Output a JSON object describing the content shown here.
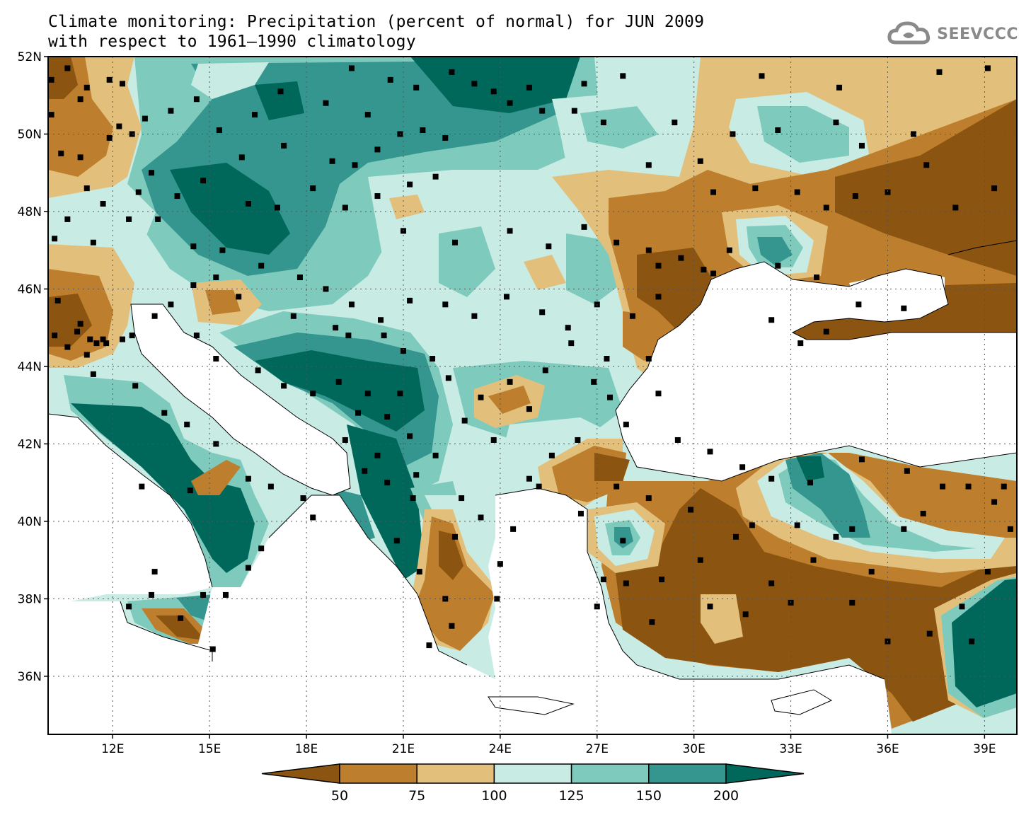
{
  "title": {
    "line1": "Climate monitoring: Precipitation (percent of normal) for JUN 2009",
    "line2": "with respect to 1961–1990 climatology"
  },
  "logo": {
    "text": "SEEVCCC",
    "icon": "cloud-icon"
  },
  "map": {
    "lon_range": [
      10,
      40
    ],
    "lat_range": [
      34.5,
      52
    ],
    "lat_ticks": [
      {
        "value": 52,
        "label": "52N"
      },
      {
        "value": 50,
        "label": "50N"
      },
      {
        "value": 48,
        "label": "48N"
      },
      {
        "value": 46,
        "label": "46N"
      },
      {
        "value": 44,
        "label": "44N"
      },
      {
        "value": 42,
        "label": "42N"
      },
      {
        "value": 40,
        "label": "40N"
      },
      {
        "value": 38,
        "label": "38N"
      },
      {
        "value": 36,
        "label": "36N"
      }
    ],
    "lon_ticks": [
      {
        "value": 12,
        "label": "12E"
      },
      {
        "value": 15,
        "label": "15E"
      },
      {
        "value": 18,
        "label": "18E"
      },
      {
        "value": 21,
        "label": "21E"
      },
      {
        "value": 24,
        "label": "24E"
      },
      {
        "value": 27,
        "label": "27E"
      },
      {
        "value": 30,
        "label": "30E"
      },
      {
        "value": 33,
        "label": "33E"
      },
      {
        "value": 36,
        "label": "36E"
      },
      {
        "value": 39,
        "label": "39E"
      }
    ],
    "grid": "dotted"
  },
  "legend": {
    "labels": [
      "50",
      "75",
      "100",
      "125",
      "150",
      "200"
    ],
    "colors": [
      "#8b5410",
      "#bd7f2e",
      "#e2c07c",
      "#c8ebe4",
      "#7ecbbe",
      "#34968e",
      "#00675b"
    ]
  },
  "colors": {
    "c1": "#8b5410",
    "c2": "#bd7f2e",
    "c3": "#e2c07c",
    "c4": "#c8ebe4",
    "c5": "#7ecbbe",
    "c6": "#34968e",
    "c7": "#00675b",
    "sea": "#ffffff"
  },
  "stations": [
    [
      10.1,
      51.4
    ],
    [
      10.6,
      51.7
    ],
    [
      11.2,
      51.2
    ],
    [
      11.9,
      51.4
    ],
    [
      12.3,
      51.3
    ],
    [
      10.1,
      50.5
    ],
    [
      11.0,
      50.9
    ],
    [
      12.2,
      50.2
    ],
    [
      13.0,
      50.4
    ],
    [
      10.4,
      49.5
    ],
    [
      11.0,
      49.4
    ],
    [
      11.9,
      49.9
    ],
    [
      12.6,
      50.0
    ],
    [
      13.2,
      49.0
    ],
    [
      13.8,
      50.6
    ],
    [
      14.6,
      50.9
    ],
    [
      15.3,
      50.1
    ],
    [
      16.4,
      50.5
    ],
    [
      17.3,
      49.7
    ],
    [
      16.0,
      49.4
    ],
    [
      14.8,
      48.8
    ],
    [
      14.0,
      48.4
    ],
    [
      12.8,
      48.5
    ],
    [
      11.7,
      48.2
    ],
    [
      11.2,
      48.6
    ],
    [
      10.6,
      47.8
    ],
    [
      10.2,
      47.3
    ],
    [
      11.4,
      47.2
    ],
    [
      12.5,
      47.8
    ],
    [
      13.4,
      47.8
    ],
    [
      14.5,
      47.1
    ],
    [
      15.4,
      47.0
    ],
    [
      16.2,
      48.2
    ],
    [
      17.1,
      48.1
    ],
    [
      18.2,
      48.6
    ],
    [
      18.8,
      49.3
    ],
    [
      19.5,
      49.2
    ],
    [
      20.2,
      49.6
    ],
    [
      20.9,
      50.0
    ],
    [
      21.6,
      50.1
    ],
    [
      22.3,
      49.9
    ],
    [
      19.9,
      50.5
    ],
    [
      18.6,
      50.8
    ],
    [
      17.2,
      51.1
    ],
    [
      19.4,
      51.7
    ],
    [
      20.6,
      51.4
    ],
    [
      21.4,
      51.2
    ],
    [
      22.5,
      51.6
    ],
    [
      23.2,
      51.3
    ],
    [
      23.8,
      51.1
    ],
    [
      24.3,
      50.8
    ],
    [
      22.0,
      48.9
    ],
    [
      21.2,
      48.7
    ],
    [
      20.2,
      48.4
    ],
    [
      19.2,
      48.1
    ],
    [
      21.0,
      47.5
    ],
    [
      22.6,
      47.2
    ],
    [
      24.3,
      47.5
    ],
    [
      25.5,
      47.1
    ],
    [
      26.6,
      47.6
    ],
    [
      27.6,
      47.2
    ],
    [
      28.6,
      47.0
    ],
    [
      29.6,
      46.8
    ],
    [
      30.6,
      46.4
    ],
    [
      28.9,
      45.8
    ],
    [
      28.1,
      45.3
    ],
    [
      27.0,
      45.6
    ],
    [
      26.1,
      45.0
    ],
    [
      25.3,
      45.4
    ],
    [
      24.2,
      45.8
    ],
    [
      23.2,
      45.3
    ],
    [
      22.3,
      45.6
    ],
    [
      21.2,
      45.7
    ],
    [
      20.3,
      45.2
    ],
    [
      19.4,
      45.6
    ],
    [
      18.6,
      46.0
    ],
    [
      17.8,
      46.3
    ],
    [
      16.6,
      46.6
    ],
    [
      15.2,
      46.3
    ],
    [
      14.5,
      46.1
    ],
    [
      13.8,
      45.6
    ],
    [
      13.3,
      45.3
    ],
    [
      12.6,
      44.8
    ],
    [
      11.8,
      44.6
    ],
    [
      11.2,
      44.3
    ],
    [
      10.6,
      44.5
    ],
    [
      10.2,
      44.8
    ],
    [
      11.4,
      43.8
    ],
    [
      12.7,
      43.5
    ],
    [
      13.6,
      42.8
    ],
    [
      14.3,
      42.5
    ],
    [
      15.2,
      42.0
    ],
    [
      16.2,
      41.1
    ],
    [
      16.9,
      40.9
    ],
    [
      17.9,
      40.6
    ],
    [
      18.2,
      40.1
    ],
    [
      16.6,
      39.3
    ],
    [
      16.2,
      38.8
    ],
    [
      15.5,
      38.1
    ],
    [
      14.8,
      38.1
    ],
    [
      13.2,
      38.1
    ],
    [
      12.5,
      37.8
    ],
    [
      14.1,
      37.5
    ],
    [
      15.1,
      36.7
    ],
    [
      13.3,
      38.7
    ],
    [
      14.4,
      40.8
    ],
    [
      12.9,
      40.9
    ],
    [
      19.3,
      44.8
    ],
    [
      20.4,
      44.8
    ],
    [
      21.0,
      44.4
    ],
    [
      21.9,
      44.2
    ],
    [
      22.4,
      43.7
    ],
    [
      20.9,
      43.3
    ],
    [
      19.9,
      43.3
    ],
    [
      20.5,
      42.7
    ],
    [
      21.2,
      42.2
    ],
    [
      22.0,
      41.7
    ],
    [
      21.4,
      41.2
    ],
    [
      20.5,
      41.0
    ],
    [
      19.8,
      41.3
    ],
    [
      19.2,
      42.1
    ],
    [
      19.0,
      43.6
    ],
    [
      18.2,
      43.3
    ],
    [
      17.3,
      43.5
    ],
    [
      16.5,
      43.9
    ],
    [
      15.2,
      44.2
    ],
    [
      14.6,
      44.8
    ],
    [
      15.9,
      45.8
    ],
    [
      17.6,
      45.3
    ],
    [
      18.9,
      45.0
    ],
    [
      19.6,
      42.8
    ],
    [
      20.2,
      41.7
    ],
    [
      21.3,
      40.6
    ],
    [
      22.8,
      40.6
    ],
    [
      23.4,
      40.1
    ],
    [
      24.4,
      39.8
    ],
    [
      22.6,
      39.6
    ],
    [
      23.9,
      38.0
    ],
    [
      22.3,
      38.0
    ],
    [
      21.5,
      38.7
    ],
    [
      20.8,
      39.5
    ],
    [
      22.5,
      37.3
    ],
    [
      21.8,
      36.8
    ],
    [
      24.0,
      38.9
    ],
    [
      24.9,
      41.1
    ],
    [
      25.6,
      41.7
    ],
    [
      26.4,
      42.1
    ],
    [
      27.9,
      42.5
    ],
    [
      27.4,
      43.2
    ],
    [
      26.9,
      43.6
    ],
    [
      25.4,
      43.9
    ],
    [
      24.3,
      43.6
    ],
    [
      23.4,
      43.2
    ],
    [
      22.9,
      42.6
    ],
    [
      23.8,
      42.1
    ],
    [
      24.9,
      42.9
    ],
    [
      26.2,
      44.6
    ],
    [
      27.3,
      44.2
    ],
    [
      28.6,
      44.2
    ],
    [
      28.9,
      43.3
    ],
    [
      29.5,
      42.1
    ],
    [
      30.5,
      41.8
    ],
    [
      31.5,
      41.4
    ],
    [
      32.4,
      41.1
    ],
    [
      33.6,
      41.0
    ],
    [
      35.2,
      41.6
    ],
    [
      36.6,
      41.3
    ],
    [
      37.7,
      40.9
    ],
    [
      38.5,
      40.9
    ],
    [
      39.6,
      40.9
    ],
    [
      37.1,
      40.2
    ],
    [
      36.5,
      39.8
    ],
    [
      34.9,
      39.8
    ],
    [
      33.2,
      39.9
    ],
    [
      31.3,
      39.6
    ],
    [
      30.2,
      39.0
    ],
    [
      29.0,
      38.5
    ],
    [
      27.9,
      38.4
    ],
    [
      27.2,
      38.5
    ],
    [
      27.0,
      37.8
    ],
    [
      28.7,
      37.4
    ],
    [
      30.5,
      37.8
    ],
    [
      31.6,
      37.6
    ],
    [
      33.0,
      37.9
    ],
    [
      34.9,
      37.9
    ],
    [
      36.0,
      36.9
    ],
    [
      37.3,
      37.1
    ],
    [
      38.6,
      36.9
    ],
    [
      39.1,
      38.7
    ],
    [
      38.3,
      37.8
    ],
    [
      35.5,
      38.7
    ],
    [
      33.7,
      39.0
    ],
    [
      32.4,
      38.4
    ],
    [
      31.8,
      39.9
    ],
    [
      29.9,
      40.3
    ],
    [
      28.6,
      40.6
    ],
    [
      27.6,
      40.9
    ],
    [
      26.5,
      40.2
    ],
    [
      25.2,
      40.9
    ],
    [
      39.8,
      39.8
    ],
    [
      39.3,
      40.5
    ],
    [
      34.4,
      39.6
    ],
    [
      27.8,
      39.5
    ],
    [
      28.9,
      46.6
    ],
    [
      30.3,
      46.5
    ],
    [
      32.6,
      46.6
    ],
    [
      33.8,
      46.3
    ],
    [
      35.1,
      45.6
    ],
    [
      36.5,
      45.5
    ],
    [
      34.1,
      44.9
    ],
    [
      32.4,
      45.2
    ],
    [
      33.3,
      44.6
    ],
    [
      31.1,
      47.0
    ],
    [
      30.6,
      48.5
    ],
    [
      31.9,
      48.6
    ],
    [
      33.2,
      48.5
    ],
    [
      34.1,
      48.1
    ],
    [
      35.0,
      48.4
    ],
    [
      36.0,
      48.5
    ],
    [
      37.2,
      49.2
    ],
    [
      38.1,
      48.1
    ],
    [
      39.3,
      48.6
    ],
    [
      36.8,
      50.0
    ],
    [
      35.2,
      49.7
    ],
    [
      34.4,
      50.3
    ],
    [
      32.6,
      50.1
    ],
    [
      31.2,
      50.0
    ],
    [
      30.2,
      49.3
    ],
    [
      29.4,
      50.3
    ],
    [
      28.6,
      49.2
    ],
    [
      27.2,
      50.3
    ],
    [
      26.3,
      50.6
    ],
    [
      25.3,
      50.6
    ],
    [
      24.9,
      51.2
    ],
    [
      26.6,
      51.3
    ],
    [
      27.8,
      51.5
    ],
    [
      32.1,
      51.5
    ],
    [
      34.5,
      51.2
    ],
    [
      37.6,
      51.6
    ],
    [
      39.1,
      51.7
    ],
    [
      10.3,
      45.7
    ],
    [
      11.0,
      45.1
    ],
    [
      11.7,
      44.7
    ],
    [
      12.3,
      44.7
    ],
    [
      10.9,
      44.9
    ],
    [
      11.3,
      44.7
    ],
    [
      11.5,
      44.6
    ]
  ]
}
